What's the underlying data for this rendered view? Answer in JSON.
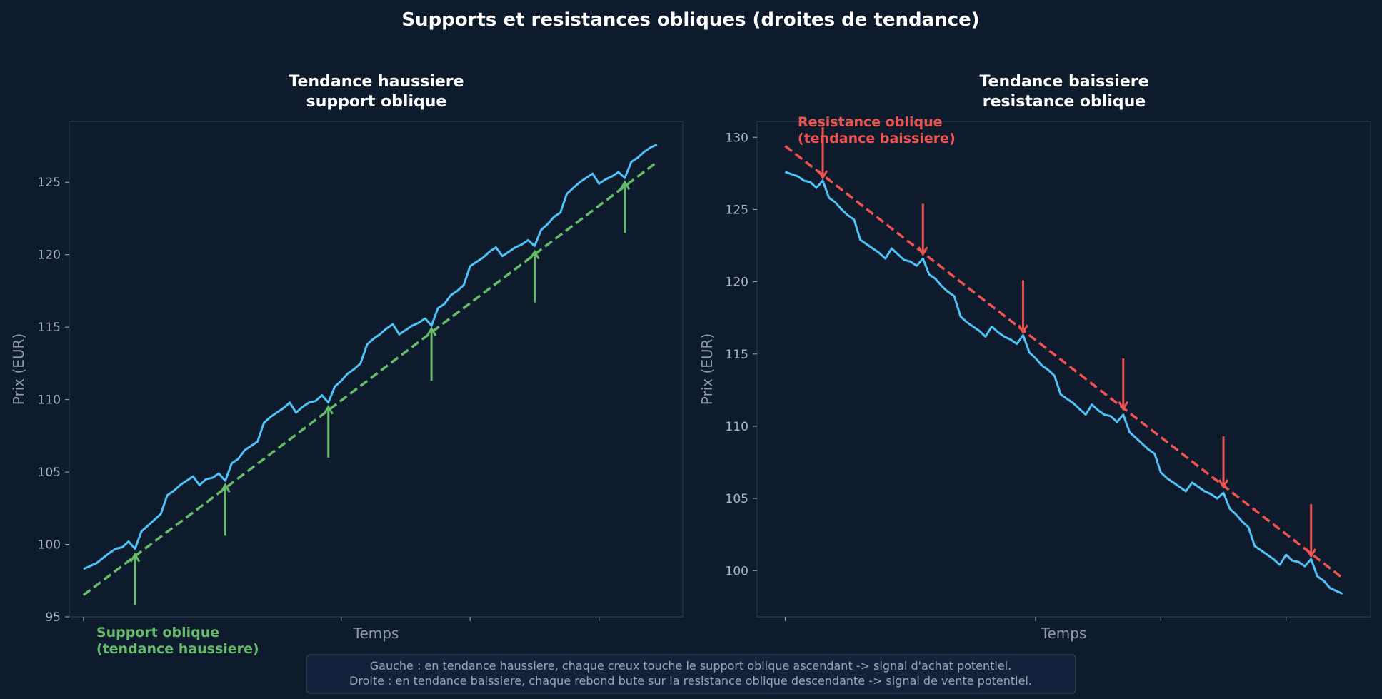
{
  "title": "Supports et resistances obliques (droites de tendance)",
  "colors": {
    "background": "#0d1b2c",
    "price": "#4fc3f7",
    "support": "#66bb6a",
    "resistance": "#ef5350",
    "frame": "#22334a",
    "text": "#ffffff",
    "muted": "#9aa6b4"
  },
  "footer": {
    "line1": "Gauche : en tendance haussiere, chaque creux touche le support oblique ascendant -> signal d'achat potentiel.",
    "line2": "Droite : en tendance baissiere, chaque rebond bute sur la resistance oblique descendante -> signal de vente potentiel."
  },
  "chart_data": [
    {
      "type": "line",
      "title_lines": [
        "Tendance haussiere",
        "support oblique"
      ],
      "xlabel": "Temps",
      "ylabel": "Prix (EUR)",
      "xlim": [
        -2.2,
        93
      ],
      "ylim": [
        95,
        129.2
      ],
      "yticks": [
        95,
        100,
        105,
        110,
        115,
        120,
        125
      ],
      "xticks": [
        0,
        40,
        60,
        80
      ],
      "grid": false,
      "series": [
        {
          "role": "price",
          "x": [
            0,
            2,
            4,
            5,
            6,
            7,
            8,
            9,
            10,
            11,
            12,
            13,
            14,
            15,
            16,
            17,
            18,
            19,
            20,
            21,
            22,
            23,
            24,
            25,
            26,
            27,
            28,
            29,
            30,
            31,
            32,
            33,
            34,
            35,
            36,
            37,
            38,
            39,
            40,
            41,
            42,
            43,
            44,
            45,
            46,
            47,
            48,
            49,
            50,
            51,
            52,
            53,
            54,
            55,
            56,
            57,
            58,
            59,
            60,
            61,
            62,
            63,
            64,
            65,
            66,
            67,
            68,
            69,
            70,
            71,
            72,
            73,
            74,
            75,
            76,
            77,
            78,
            79,
            80,
            81,
            82,
            83,
            84,
            85,
            86,
            87,
            88,
            89
          ],
          "values": [
            98.3,
            98.7,
            99.4,
            99.7,
            99.8,
            100.2,
            99.7,
            100.9,
            101.3,
            101.7,
            102.1,
            103.4,
            103.7,
            104.1,
            104.4,
            104.7,
            104.1,
            104.5,
            104.6,
            104.9,
            104.4,
            105.6,
            105.9,
            106.5,
            106.8,
            107.1,
            108.4,
            108.8,
            109.1,
            109.4,
            109.8,
            109.1,
            109.5,
            109.8,
            109.9,
            110.3,
            109.8,
            110.9,
            111.3,
            111.8,
            112.1,
            112.5,
            113.8,
            114.2,
            114.5,
            114.9,
            115.2,
            114.5,
            114.8,
            115.1,
            115.3,
            115.6,
            115.1,
            116.3,
            116.6,
            117.2,
            117.5,
            117.9,
            119.2,
            119.5,
            119.8,
            120.2,
            120.5,
            119.9,
            120.2,
            120.5,
            120.7,
            121.0,
            120.6,
            121.7,
            122.1,
            122.6,
            122.9,
            124.2,
            124.6,
            125.0,
            125.3,
            125.6,
            124.9,
            125.2,
            125.4,
            125.7,
            125.3,
            126.4,
            126.7,
            127.1,
            127.4,
            127.6
          ]
        },
        {
          "role": "trendline",
          "name": "support",
          "x": [
            0,
            89
          ],
          "values": [
            96.5,
            126.4
          ]
        }
      ],
      "arrows": [
        {
          "x": 8,
          "from": 95.8,
          "to": 99.3
        },
        {
          "x": 22,
          "from": 100.6,
          "to": 104.1
        },
        {
          "x": 38,
          "from": 106.0,
          "to": 109.5
        },
        {
          "x": 54,
          "from": 111.3,
          "to": 114.9
        },
        {
          "x": 70,
          "from": 116.7,
          "to": 120.2
        },
        {
          "x": 84,
          "from": 121.5,
          "to": 125.0
        }
      ],
      "annotation": {
        "lines": [
          "Support oblique",
          "(tendance haussiere)"
        ],
        "x": 2,
        "y": 94.4
      }
    },
    {
      "type": "line",
      "title_lines": [
        "Tendance baissiere",
        "resistance oblique"
      ],
      "xlabel": "Temps",
      "ylabel": "Prix (EUR)",
      "xlim": [
        -4.5,
        93.5
      ],
      "ylim": [
        96.8,
        131.1
      ],
      "yticks": [
        100,
        105,
        110,
        115,
        120,
        125,
        130
      ],
      "xticks": [
        0,
        40,
        60,
        80
      ],
      "grid": false,
      "series": [
        {
          "role": "price",
          "x": [
            0,
            2,
            3,
            4,
            5,
            6,
            7,
            8,
            9,
            10,
            11,
            12,
            13,
            14,
            15,
            16,
            17,
            18,
            19,
            20,
            21,
            22,
            23,
            24,
            25,
            26,
            27,
            28,
            29,
            30,
            31,
            32,
            33,
            34,
            35,
            36,
            37,
            38,
            39,
            40,
            41,
            42,
            43,
            44,
            45,
            46,
            47,
            48,
            49,
            50,
            51,
            52,
            53,
            54,
            55,
            56,
            57,
            58,
            59,
            60,
            61,
            62,
            63,
            64,
            65,
            66,
            67,
            68,
            69,
            70,
            71,
            72,
            73,
            74,
            75,
            76,
            77,
            78,
            79,
            80,
            81,
            82,
            83,
            84,
            85,
            86,
            87,
            88,
            89
          ],
          "values": [
            127.6,
            127.3,
            127.0,
            126.9,
            126.5,
            127.0,
            125.8,
            125.5,
            125.0,
            124.6,
            124.3,
            122.9,
            122.6,
            122.3,
            122.0,
            121.6,
            122.3,
            121.9,
            121.5,
            121.4,
            121.1,
            121.6,
            120.5,
            120.2,
            119.7,
            119.3,
            119.0,
            117.6,
            117.2,
            116.9,
            116.6,
            116.2,
            116.9,
            116.5,
            116.2,
            116.0,
            115.7,
            116.3,
            115.1,
            114.7,
            114.2,
            113.9,
            113.5,
            112.2,
            111.9,
            111.6,
            111.2,
            110.8,
            111.5,
            111.1,
            110.8,
            110.7,
            110.3,
            110.8,
            109.6,
            109.2,
            108.8,
            108.4,
            108.1,
            106.8,
            106.4,
            106.1,
            105.8,
            105.5,
            106.1,
            105.8,
            105.5,
            105.3,
            105.0,
            105.4,
            104.3,
            103.9,
            103.4,
            103.0,
            101.7,
            101.4,
            101.1,
            100.8,
            100.4,
            101.1,
            100.7,
            100.6,
            100.3,
            100.8,
            99.6,
            99.3,
            98.8,
            98.6,
            98.4
          ]
        },
        {
          "role": "trendline",
          "name": "resistance",
          "x": [
            0,
            89
          ],
          "values": [
            129.4,
            99.5
          ]
        }
      ],
      "arrows": [
        {
          "x": 6,
          "from": 130.7,
          "to": 127.2
        },
        {
          "x": 22,
          "from": 125.4,
          "to": 121.9
        },
        {
          "x": 38,
          "from": 120.1,
          "to": 116.5
        },
        {
          "x": 54,
          "from": 114.7,
          "to": 111.2
        },
        {
          "x": 70,
          "from": 109.3,
          "to": 105.8
        },
        {
          "x": 84,
          "from": 104.6,
          "to": 101.0
        }
      ],
      "annotation": {
        "lines": [
          "Resistance oblique",
          "(tendance baissiere)"
        ],
        "x": 2,
        "y": 131.1
      }
    }
  ]
}
